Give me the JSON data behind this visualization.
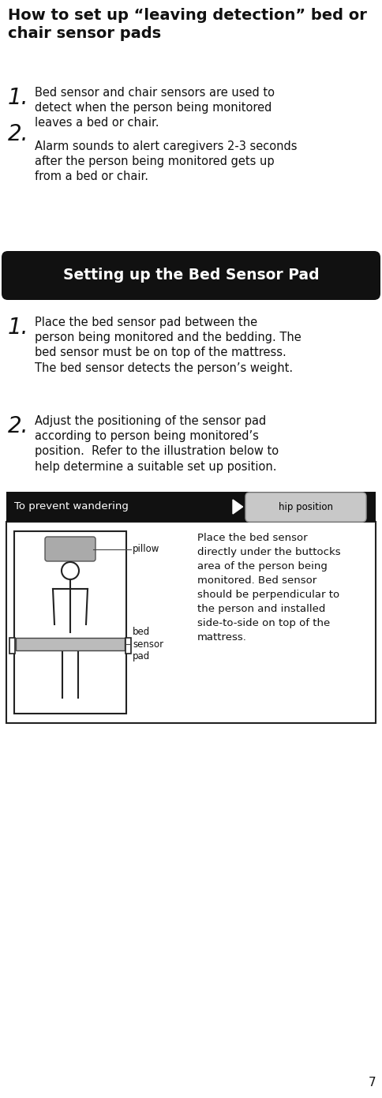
{
  "title": "How to set up “leaving detection” bed or\nchair sensor pads",
  "title_fontsize": 14,
  "title_fontweight": "bold",
  "section_banner_text": "Setting up the Bed Sensor Pad",
  "section_banner_bg": "#111111",
  "section_banner_fg": "#ffffff",
  "section_banner_fontsize": 13.5,
  "item1_number": "1.",
  "item1_text": "Bed sensor and chair sensors are used to\ndetect when the person being monitored\nleaves a bed or chair.",
  "item2_number": "2.",
  "item2_text": "Alarm sounds to alert caregivers 2-3 seconds\nafter the person being monitored gets up\nfrom a bed or chair.",
  "step1_number": "1.",
  "step1_text": "Place the bed sensor pad between the\nperson being monitored and the bedding. The\nbed sensor must be on top of the mattress.\nThe bed sensor detects the person’s weight.",
  "step2_number": "2.",
  "step2_text": "Adjust the positioning of the sensor pad\naccording to person being monitored’s\nposition.  Refer to the illustration below to\nhelp determine a suitable set up position.",
  "panel_bg": "#111111",
  "panel_title": "To prevent wandering",
  "panel_title_fg": "#ffffff",
  "panel_title_fontsize": 9.5,
  "hip_label": "hip position",
  "hip_label_bg": "#cccccc",
  "hip_label_fg": "#000000",
  "hip_label_fontsize": 8.5,
  "pillow_label": "pillow",
  "sensor_label": "bed\nsensor\npad",
  "panel_body_text": "Place the bed sensor\ndirectly under the buttocks\narea of the person being\nmonitored. Bed sensor\nshould be perpendicular to\nthe person and installed\nside-to-side on top of the\nmattress.",
  "panel_body_fontsize": 9.5,
  "page_number": "7",
  "bg_color": "#ffffff",
  "text_color": "#111111",
  "body_fontsize": 10.5,
  "number_fontsize": 20,
  "label_fontsize": 8.5
}
